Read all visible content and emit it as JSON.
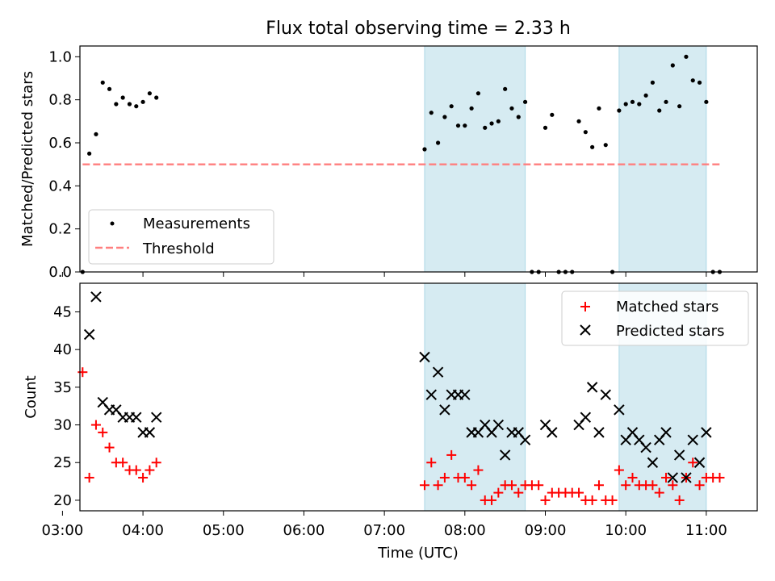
{
  "figure": {
    "title": "Flux total observing time = 2.33 h"
  },
  "chart_data": [
    {
      "type": "scatter",
      "panel": "top",
      "ylabel": "Matched/Predicted stars",
      "xlim": [
        "03:13",
        "11:38"
      ],
      "ylim": [
        0,
        1.05
      ],
      "yticks": [
        "0.0",
        "0.2",
        "0.4",
        "0.6",
        "0.8",
        "1.0"
      ],
      "grid": false,
      "legend": {
        "placement": "lower-left",
        "entries": [
          "Measurements",
          "Threshold"
        ]
      },
      "threshold": {
        "name": "Threshold",
        "y": 0.5,
        "x_start": "03:15",
        "x_end": "11:10",
        "style": "dashed",
        "color": "#ff7f7f"
      },
      "series": [
        {
          "name": "Measurements",
          "color": "#000000",
          "x": [
            "03:15",
            "03:20",
            "03:25",
            "03:30",
            "03:35",
            "03:40",
            "03:45",
            "03:50",
            "03:55",
            "04:00",
            "04:05",
            "04:10",
            "07:30",
            "07:35",
            "07:40",
            "07:45",
            "07:50",
            "07:55",
            "08:00",
            "08:05",
            "08:10",
            "08:15",
            "08:20",
            "08:25",
            "08:30",
            "08:35",
            "08:40",
            "08:45",
            "08:50",
            "08:55",
            "09:00",
            "09:05",
            "09:10",
            "09:15",
            "09:20",
            "09:25",
            "09:30",
            "09:35",
            "09:40",
            "09:45",
            "09:50",
            "09:55",
            "10:00",
            "10:05",
            "10:10",
            "10:15",
            "10:20",
            "10:25",
            "10:30",
            "10:35",
            "10:40",
            "10:45",
            "10:50",
            "10:55",
            "11:00",
            "11:05",
            "11:10"
          ],
          "y": [
            0.0,
            0.55,
            0.64,
            0.88,
            0.85,
            0.78,
            0.81,
            0.78,
            0.77,
            0.79,
            0.83,
            0.81,
            0.57,
            0.74,
            0.6,
            0.72,
            0.77,
            0.68,
            0.68,
            0.76,
            0.83,
            0.67,
            0.69,
            0.7,
            0.85,
            0.76,
            0.72,
            0.79,
            0.0,
            0.0,
            0.67,
            0.73,
            0.0,
            0.0,
            0.0,
            0.7,
            0.65,
            0.58,
            0.76,
            0.59,
            0.0,
            0.75,
            0.78,
            0.79,
            0.78,
            0.82,
            0.88,
            0.75,
            0.79,
            0.96,
            0.77,
            1.0,
            0.89,
            0.88,
            0.79,
            0.0,
            0.0
          ]
        }
      ]
    },
    {
      "type": "scatter",
      "panel": "bottom",
      "xlabel": "Time (UTC)",
      "ylabel": "Count",
      "xlim": [
        "03:13",
        "11:38"
      ],
      "xticks": [
        "03:00",
        "04:00",
        "05:00",
        "06:00",
        "07:00",
        "08:00",
        "09:00",
        "10:00",
        "11:00"
      ],
      "ylim": [
        18.6,
        48.8
      ],
      "yticks": [
        "20",
        "25",
        "30",
        "35",
        "40",
        "45"
      ],
      "grid": false,
      "legend": {
        "placement": "top-right",
        "entries": [
          "Matched stars",
          "Predicted stars"
        ]
      },
      "series": [
        {
          "name": "Matched stars",
          "marker": "+",
          "color": "#ff0000",
          "x": [
            "03:15",
            "03:20",
            "03:25",
            "03:30",
            "03:35",
            "03:40",
            "03:45",
            "03:50",
            "03:55",
            "04:00",
            "04:05",
            "04:10",
            "07:30",
            "07:35",
            "07:40",
            "07:45",
            "07:50",
            "07:55",
            "08:00",
            "08:05",
            "08:10",
            "08:15",
            "08:20",
            "08:25",
            "08:30",
            "08:35",
            "08:40",
            "08:45",
            "08:50",
            "08:55",
            "09:00",
            "09:05",
            "09:10",
            "09:15",
            "09:20",
            "09:25",
            "09:30",
            "09:35",
            "09:40",
            "09:45",
            "09:50",
            "09:55",
            "10:00",
            "10:05",
            "10:10",
            "10:15",
            "10:20",
            "10:25",
            "10:30",
            "10:35",
            "10:40",
            "10:45",
            "10:50",
            "10:55",
            "11:00",
            "11:05",
            "11:10"
          ],
          "y": [
            37,
            23,
            30,
            29,
            27,
            25,
            25,
            24,
            24,
            23,
            24,
            25,
            22,
            25,
            22,
            23,
            26,
            23,
            23,
            22,
            24,
            20,
            20,
            21,
            22,
            22,
            21,
            22,
            22,
            22,
            20,
            21,
            21,
            21,
            21,
            21,
            20,
            20,
            22,
            20,
            20,
            24,
            22,
            23,
            22,
            22,
            22,
            21,
            23,
            22,
            20,
            23,
            25,
            22,
            23,
            23,
            23
          ]
        },
        {
          "name": "Predicted stars",
          "marker": "x",
          "color": "#000000",
          "x": [
            "03:20",
            "03:25",
            "03:30",
            "03:35",
            "03:40",
            "03:45",
            "03:50",
            "03:55",
            "04:00",
            "04:05",
            "04:10",
            "07:30",
            "07:35",
            "07:40",
            "07:45",
            "07:50",
            "07:55",
            "08:00",
            "08:05",
            "08:10",
            "08:15",
            "08:20",
            "08:25",
            "08:30",
            "08:35",
            "08:40",
            "08:45",
            "09:00",
            "09:05",
            "09:25",
            "09:30",
            "09:35",
            "09:40",
            "09:45",
            "09:55",
            "10:00",
            "10:05",
            "10:10",
            "10:15",
            "10:20",
            "10:25",
            "10:30",
            "10:35",
            "10:40",
            "10:45",
            "10:50",
            "10:55",
            "11:00"
          ],
          "y": [
            42,
            47,
            33,
            32,
            32,
            31,
            31,
            31,
            29,
            29,
            31,
            39,
            34,
            37,
            32,
            34,
            34,
            34,
            29,
            29,
            30,
            29,
            30,
            26,
            29,
            29,
            28,
            30,
            29,
            30,
            31,
            35,
            29,
            34,
            32,
            28,
            29,
            28,
            27,
            25,
            28,
            29,
            23,
            26,
            23,
            28,
            25,
            29
          ]
        }
      ]
    }
  ]
}
